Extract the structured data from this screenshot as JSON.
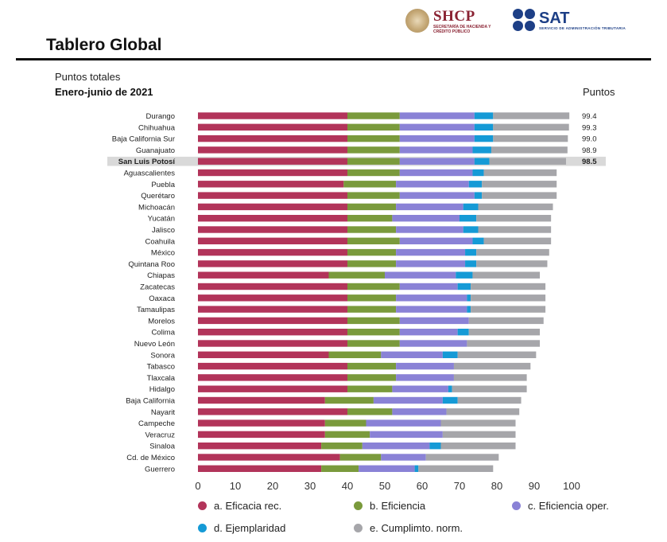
{
  "header": {
    "logo_shcp": {
      "name": "SHCP",
      "subtitle": "SECRETARÍA DE HACIENDA Y CRÉDITO PÚBLICO"
    },
    "logo_sat": {
      "name": "SAT",
      "subtitle": "SERVICIO DE ADMINISTRACIÓN TRIBUTARIA"
    },
    "page_title": "Tablero Global"
  },
  "chart_data": {
    "type": "bar",
    "orientation": "horizontal",
    "stacked": true,
    "subtitle": "Puntos totales",
    "title": "Enero-junio de 2021",
    "values_header": "Puntos",
    "xlim": [
      0,
      100
    ],
    "xticks": [
      0,
      10,
      20,
      30,
      40,
      50,
      60,
      70,
      80,
      90,
      100
    ],
    "highlight": "San Luis Potosí",
    "colors": {
      "a": "#b2345a",
      "b": "#7a9a3c",
      "c": "#8a82d6",
      "d": "#159ad6",
      "e": "#a6a6aa",
      "highlight_band": "#d9d9d9"
    },
    "categories": [
      "Durango",
      "Chihuahua",
      "Baja California Sur",
      "Guanajuato",
      "San Luis Potosí",
      "Aguascalientes",
      "Puebla",
      "Querétaro",
      "Michoacán",
      "Yucatán",
      "Jalisco",
      "Coahuila",
      "México",
      "Quintana Roo",
      "Chiapas",
      "Zacatecas",
      "Oaxaca",
      "Tamaulipas",
      "Morelos",
      "Colima",
      "Nuevo León",
      "Sonora",
      "Tabasco",
      "Tlaxcala",
      "Hidalgo",
      "Baja California",
      "Nayarit",
      "Campeche",
      "Veracruz",
      "Sinaloa",
      "Cd. de México",
      "Guerrero"
    ],
    "totals_labels": [
      "99.4",
      "99.3",
      "99.0",
      "98.9",
      "98.5"
    ],
    "series": [
      {
        "name": "a. Eficacia rec.",
        "key": "a",
        "values": [
          40,
          40,
          40,
          40,
          40,
          40,
          39,
          40,
          40,
          40,
          40,
          40,
          40,
          40,
          35,
          40,
          40,
          40,
          40,
          40,
          40,
          35,
          40,
          40,
          40,
          34,
          40,
          34,
          34,
          33,
          38,
          33
        ]
      },
      {
        "name": "b. Eficiencia",
        "key": "b",
        "values": [
          14,
          14,
          14,
          14,
          14,
          14,
          14,
          14,
          13,
          12,
          13,
          14,
          13,
          13,
          15,
          14,
          13,
          13,
          14,
          14,
          14,
          14,
          13,
          13,
          12,
          13,
          12,
          11,
          12,
          11,
          11,
          10
        ]
      },
      {
        "name": "c. Eficiencia oper.",
        "key": "c",
        "values": [
          20,
          20,
          20,
          19.5,
          20,
          19.5,
          19.5,
          20,
          18,
          18,
          18,
          19.5,
          18.5,
          18.5,
          19,
          15.5,
          19,
          19,
          18.5,
          15.5,
          18,
          16.5,
          15.5,
          15.5,
          15,
          18.5,
          14.5,
          20,
          19.5,
          18,
          12,
          15
        ]
      },
      {
        "name": "d. Ejemplaridad",
        "key": "d",
        "values": [
          5,
          5,
          5,
          5,
          4,
          3,
          3.5,
          2,
          4,
          4.5,
          4,
          3,
          3,
          3,
          4.5,
          3.5,
          1,
          1,
          0,
          3,
          0,
          4,
          0,
          0,
          1,
          4,
          0,
          0,
          0,
          3,
          0,
          1
        ]
      },
      {
        "name": "e. Cumplimto. norm.",
        "key": "e",
        "values": [
          20.4,
          20.3,
          20,
          20.4,
          20.5,
          19.5,
          20,
          20,
          20,
          20,
          19.5,
          18,
          19.5,
          19,
          18,
          20,
          20,
          20,
          20,
          19,
          19.5,
          21,
          20.5,
          19.5,
          20,
          17,
          19.5,
          20,
          19.5,
          20,
          19.5,
          20
        ]
      }
    ]
  }
}
